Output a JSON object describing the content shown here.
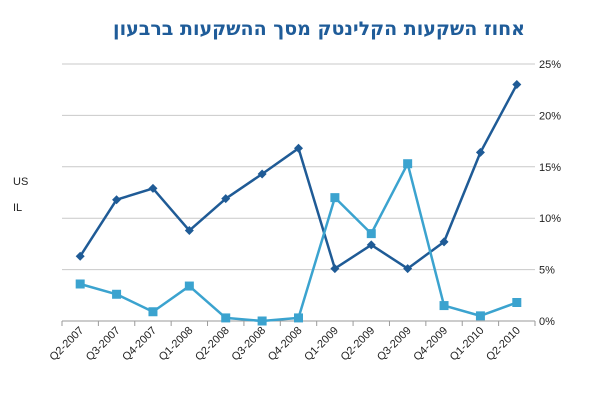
{
  "chart_data": {
    "type": "line",
    "title": "אחוז השקעות הקלינטק מסך ההשקעות ברבעון",
    "categories": [
      "Q2-2007",
      "Q3-2007",
      "Q4-2007",
      "Q1-2008",
      "Q2-2008",
      "Q3-2008",
      "Q4-2008",
      "Q1-2009",
      "Q2-2009",
      "Q3-2009",
      "Q4-2009",
      "Q1-2010",
      "Q2-2010"
    ],
    "series": [
      {
        "name": "US",
        "color": "#1f5b96",
        "marker": "diamond",
        "values": [
          6.3,
          11.8,
          12.9,
          8.8,
          11.9,
          14.3,
          16.8,
          5.1,
          7.4,
          5.1,
          7.7,
          16.4,
          23.0
        ]
      },
      {
        "name": "IL",
        "color": "#3ba3cf",
        "marker": "square",
        "values": [
          3.6,
          2.6,
          0.9,
          3.4,
          0.3,
          0.0,
          0.3,
          12.0,
          8.5,
          15.3,
          1.5,
          0.5,
          1.8
        ]
      }
    ],
    "ylim": [
      0,
      25
    ],
    "yticks": [
      "0%",
      "5%",
      "10%",
      "15%",
      "20%",
      "25%"
    ],
    "ytick_values": [
      0,
      5,
      10,
      15,
      20,
      25
    ],
    "y_axis_side": "right",
    "grid": true
  }
}
